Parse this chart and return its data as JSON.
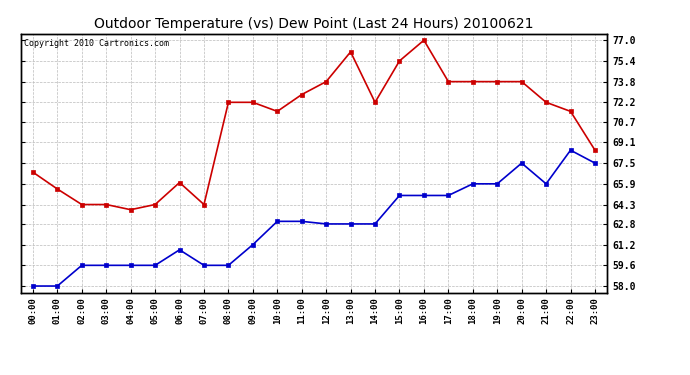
{
  "title": "Outdoor Temperature (vs) Dew Point (Last 24 Hours) 20100621",
  "copyright": "Copyright 2010 Cartronics.com",
  "x_labels": [
    "00:00",
    "01:00",
    "02:00",
    "03:00",
    "04:00",
    "05:00",
    "06:00",
    "07:00",
    "08:00",
    "09:00",
    "10:00",
    "11:00",
    "12:00",
    "13:00",
    "14:00",
    "15:00",
    "16:00",
    "17:00",
    "18:00",
    "19:00",
    "20:00",
    "21:00",
    "22:00",
    "23:00"
  ],
  "temp_data": [
    66.8,
    65.5,
    64.3,
    64.3,
    63.9,
    64.3,
    66.0,
    64.3,
    72.2,
    72.2,
    71.5,
    72.8,
    73.8,
    76.1,
    72.2,
    75.4,
    77.0,
    73.8,
    73.8,
    73.8,
    73.8,
    72.2,
    71.5,
    68.5
  ],
  "dew_data": [
    58.0,
    58.0,
    59.6,
    59.6,
    59.6,
    59.6,
    60.8,
    59.6,
    59.6,
    61.2,
    63.0,
    63.0,
    62.8,
    62.8,
    62.8,
    65.0,
    65.0,
    65.0,
    65.9,
    65.9,
    67.5,
    65.9,
    68.5,
    67.5
  ],
  "y_ticks": [
    58.0,
    59.6,
    61.2,
    62.8,
    64.3,
    65.9,
    67.5,
    69.1,
    70.7,
    72.2,
    73.8,
    75.4,
    77.0
  ],
  "y_min": 57.5,
  "y_max": 77.5,
  "temp_color": "#cc0000",
  "dew_color": "#0000cc",
  "grid_color": "#bbbbbb",
  "bg_color": "#ffffff",
  "plot_bg_color": "#ffffff"
}
